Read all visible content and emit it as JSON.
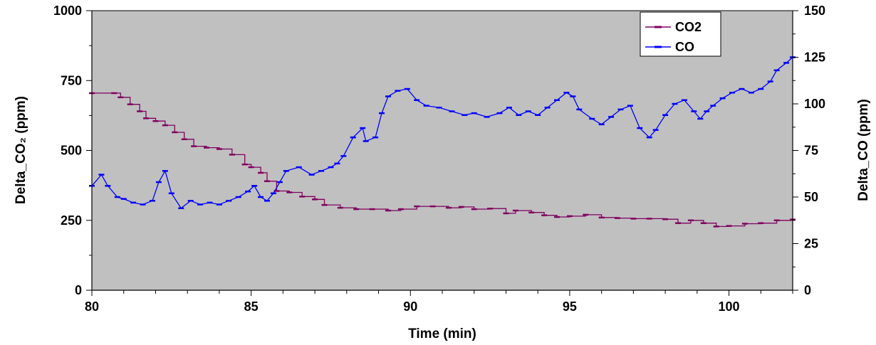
{
  "chart_data": {
    "type": "line",
    "xlabel": "Time (min)",
    "ylabel_left": "Delta_CO₂ (ppm)",
    "ylabel_right": "Delta_CO (ppm)",
    "xlim": [
      80,
      102
    ],
    "ylim_left": [
      0,
      1000
    ],
    "ylim_right": [
      0,
      150
    ],
    "x_ticks": [
      80,
      85,
      90,
      95,
      100
    ],
    "y_ticks_left": [
      0,
      250,
      500,
      750,
      1000
    ],
    "y_ticks_right": [
      0,
      25,
      50,
      75,
      100,
      125,
      150
    ],
    "grid": false,
    "legend_position": "top-right",
    "plot_background": "#c0c0c0",
    "series": [
      {
        "name": "CO2",
        "axis": "left",
        "color": "#800060",
        "x": [
          80,
          80.7,
          80.9,
          81.2,
          81.5,
          81.7,
          82.0,
          82.3,
          82.6,
          82.9,
          83.2,
          83.6,
          84.0,
          84.4,
          84.8,
          85.0,
          85.3,
          85.5,
          85.8,
          86.2,
          86.6,
          87.0,
          87.3,
          87.8,
          88.3,
          88.8,
          89.3,
          89.7,
          90.2,
          90.7,
          91.2,
          91.6,
          92.0,
          92.5,
          93.0,
          93.3,
          93.8,
          94.2,
          94.6,
          95.0,
          95.5,
          96.0,
          96.5,
          97.0,
          97.5,
          98.0,
          98.4,
          98.8,
          99.2,
          99.6,
          100.0,
          100.5,
          101.0,
          101.5,
          102.0
        ],
        "values": [
          705,
          705,
          690,
          665,
          640,
          615,
          605,
          590,
          565,
          540,
          515,
          510,
          505,
          485,
          450,
          440,
          420,
          390,
          355,
          350,
          335,
          325,
          305,
          295,
          290,
          290,
          285,
          290,
          300,
          300,
          295,
          298,
          290,
          292,
          275,
          285,
          278,
          268,
          262,
          265,
          270,
          260,
          258,
          256,
          256,
          254,
          240,
          250,
          240,
          228,
          230,
          238,
          240,
          250,
          253
        ]
      },
      {
        "name": "CO",
        "axis": "right",
        "color": "#0000ff",
        "x": [
          80,
          80.3,
          80.5,
          80.8,
          81.0,
          81.3,
          81.6,
          81.9,
          82.1,
          82.3,
          82.5,
          82.8,
          83.1,
          83.4,
          83.7,
          84.0,
          84.3,
          84.6,
          84.9,
          85.1,
          85.3,
          85.5,
          85.7,
          85.9,
          86.1,
          86.5,
          86.9,
          87.2,
          87.5,
          87.7,
          87.9,
          88.2,
          88.5,
          88.6,
          88.9,
          89.1,
          89.3,
          89.6,
          89.9,
          90.2,
          90.5,
          90.9,
          91.3,
          91.7,
          92.0,
          92.4,
          92.8,
          93.1,
          93.4,
          93.7,
          94.0,
          94.3,
          94.6,
          94.9,
          95.1,
          95.3,
          95.7,
          96.0,
          96.3,
          96.6,
          96.9,
          97.2,
          97.5,
          97.7,
          98.0,
          98.3,
          98.6,
          98.9,
          99.1,
          99.3,
          99.5,
          99.8,
          100.1,
          100.4,
          100.7,
          101.0,
          101.3,
          101.5,
          101.8,
          102.0
        ],
        "values": [
          56,
          62,
          56,
          50,
          49,
          47,
          46,
          48,
          58,
          64,
          52,
          44,
          48,
          46,
          47,
          46,
          48,
          50,
          53,
          56,
          50,
          48,
          52,
          58,
          64,
          66,
          62,
          64,
          66,
          68,
          72,
          82,
          87,
          80,
          82,
          95,
          104,
          107,
          108,
          102,
          99,
          98,
          96,
          94,
          95,
          93,
          95,
          98,
          94,
          96,
          94,
          98,
          102,
          106,
          104,
          97,
          92,
          89,
          93,
          97,
          99,
          87,
          82,
          86,
          94,
          100,
          102,
          96,
          92,
          96,
          99,
          103,
          106,
          108,
          106,
          108,
          112,
          118,
          122,
          125
        ]
      }
    ]
  }
}
